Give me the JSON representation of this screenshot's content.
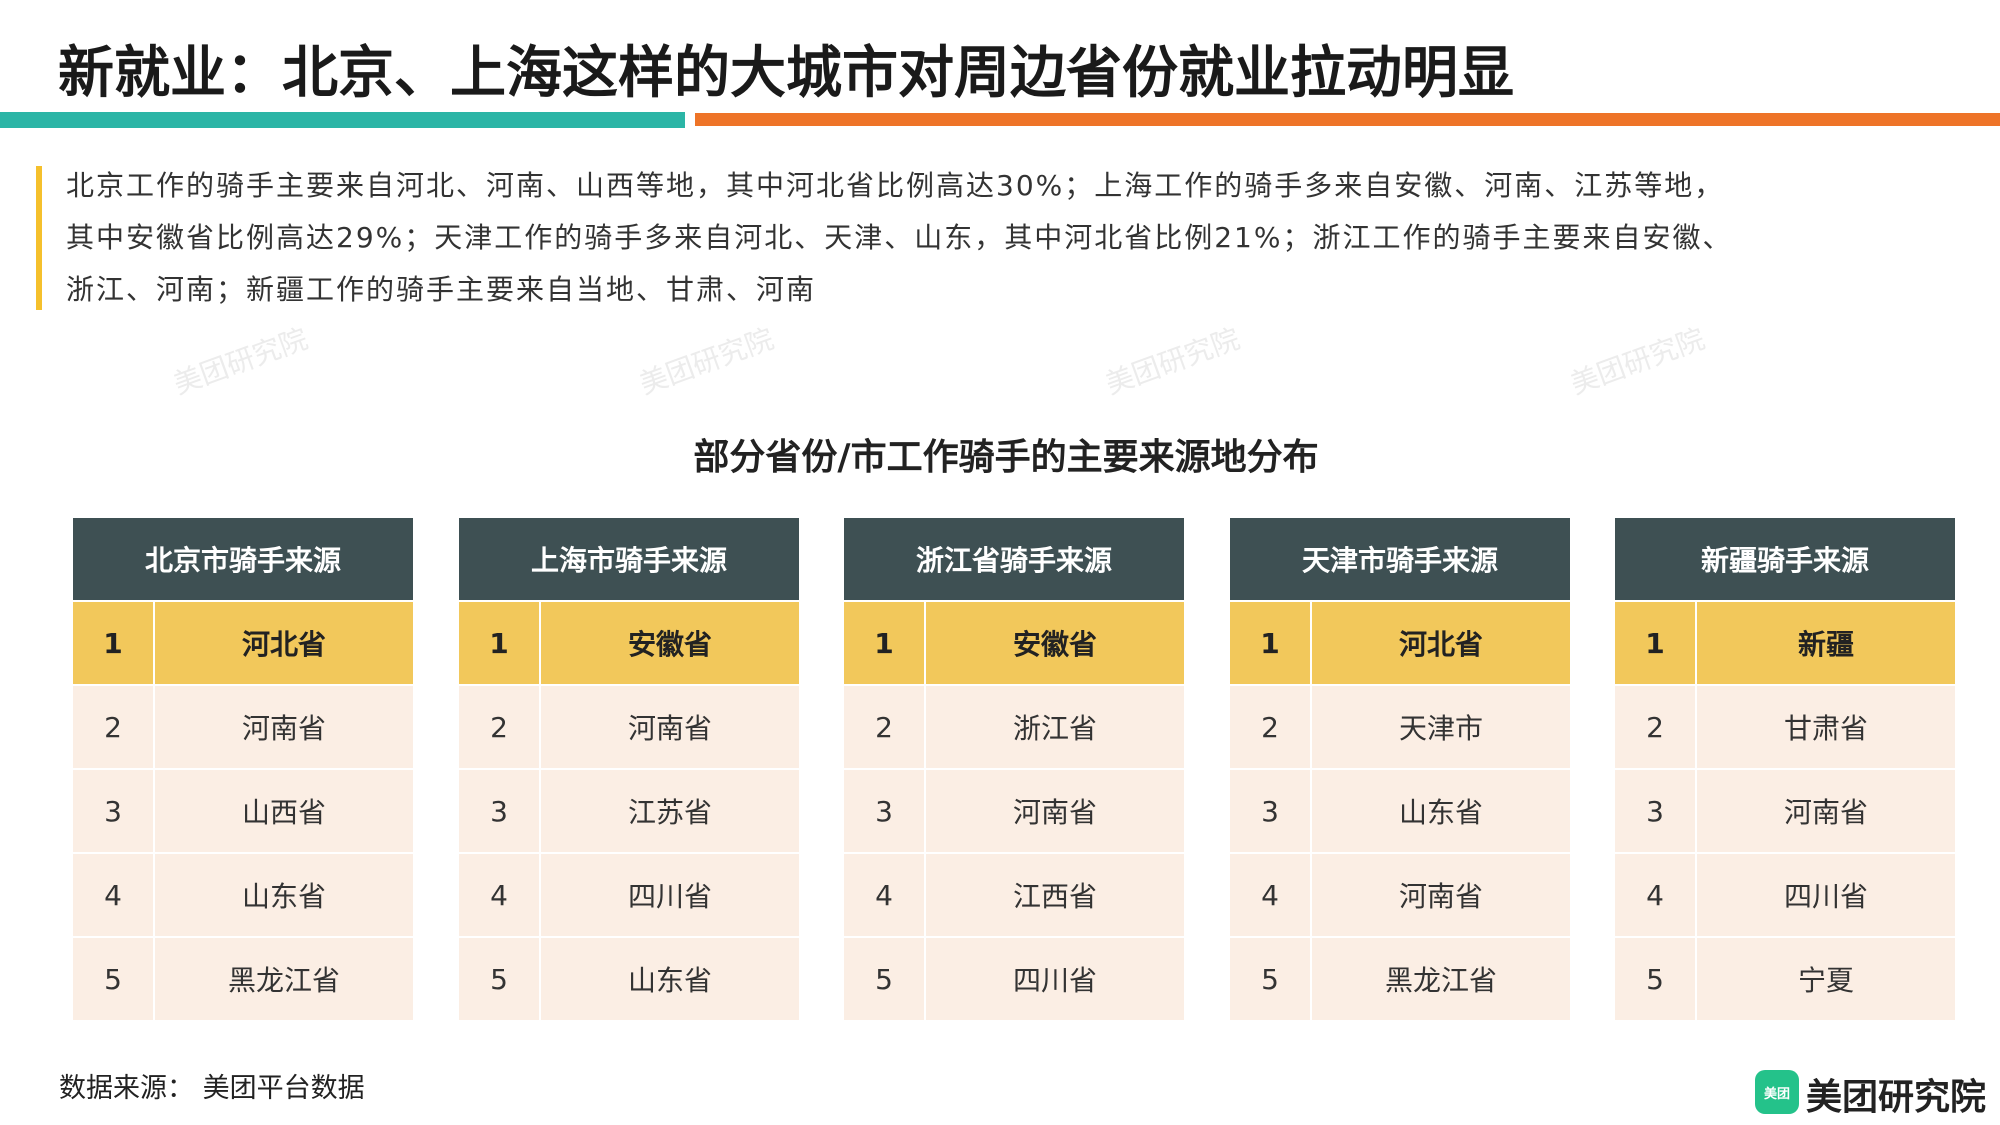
{
  "header": {
    "title": "新就业：北京、上海这样的大城市对周边省份就业拉动明显"
  },
  "paragraph": [
    "北京工作的骑手主要来自河北、河南、山西等地，其中河北省比例高达30%；上海工作的骑手多来自安徽、河南、江苏等地，",
    "其中安徽省比例高达29%；天津工作的骑手多来自河北、天津、山东，其中河北省比例21%；浙江工作的骑手主要来自安徽、",
    "浙江、河南；新疆工作的骑手主要来自当地、甘肃、河南"
  ],
  "watermark": "美团研究院",
  "section_title": "部分省份/市工作骑手的主要来源地分布",
  "tables": [
    {
      "header": "北京市骑手来源",
      "rows": [
        [
          1,
          "河北省"
        ],
        [
          2,
          "河南省"
        ],
        [
          3,
          "山西省"
        ],
        [
          4,
          "山东省"
        ],
        [
          5,
          "黑龙江省"
        ]
      ]
    },
    {
      "header": "上海市骑手来源",
      "rows": [
        [
          1,
          "安徽省"
        ],
        [
          2,
          "河南省"
        ],
        [
          3,
          "江苏省"
        ],
        [
          4,
          "四川省"
        ],
        [
          5,
          "山东省"
        ]
      ]
    },
    {
      "header": "浙江省骑手来源",
      "rows": [
        [
          1,
          "安徽省"
        ],
        [
          2,
          "浙江省"
        ],
        [
          3,
          "河南省"
        ],
        [
          4,
          "江西省"
        ],
        [
          5,
          "四川省"
        ]
      ]
    },
    {
      "header": "天津市骑手来源",
      "rows": [
        [
          1,
          "河北省"
        ],
        [
          2,
          "天津市"
        ],
        [
          3,
          "山东省"
        ],
        [
          4,
          "河南省"
        ],
        [
          5,
          "黑龙江省"
        ]
      ]
    },
    {
      "header": "新疆骑手来源",
      "rows": [
        [
          1,
          "新疆"
        ],
        [
          2,
          "甘肃省"
        ],
        [
          3,
          "河南省"
        ],
        [
          4,
          "四川省"
        ],
        [
          5,
          "宁夏"
        ]
      ]
    }
  ],
  "footer": {
    "source": "数据来源： 美团平台数据",
    "logo_icon": "美团",
    "logo_text": "美团研究院"
  }
}
